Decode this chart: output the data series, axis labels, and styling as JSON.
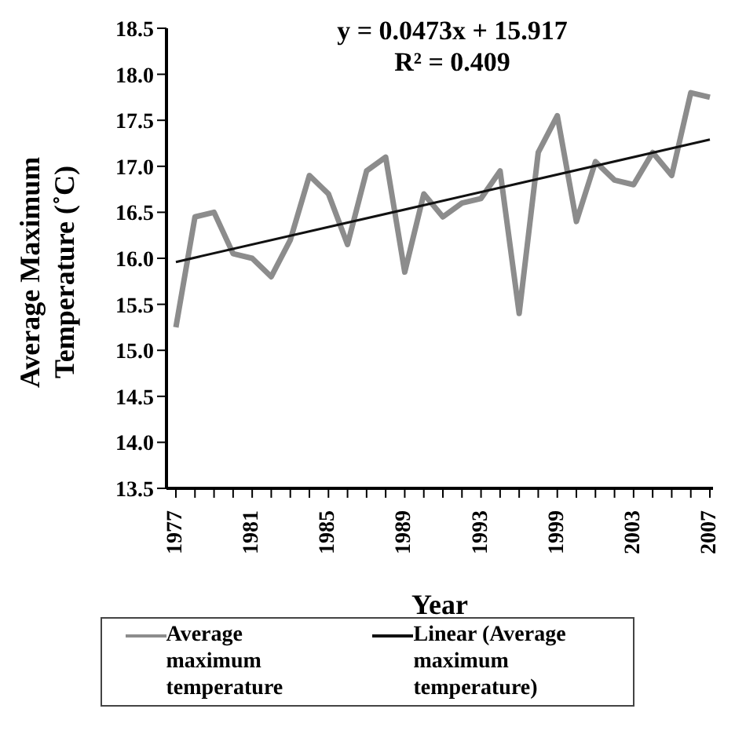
{
  "chart_data": {
    "type": "line",
    "xlabel": "Year",
    "ylabel": "Average Maximum Temperature (˚C)",
    "categories": [
      "1977",
      null,
      null,
      null,
      "1981",
      null,
      null,
      null,
      "1985",
      null,
      null,
      null,
      "1989",
      null,
      null,
      null,
      "1993",
      null,
      null,
      null,
      "1999",
      null,
      null,
      null,
      "2003",
      null,
      null,
      null,
      "2007"
    ],
    "series": [
      {
        "name": "Average maximum temperature",
        "color": "#8c8c8c",
        "values": [
          15.25,
          16.45,
          16.5,
          16.05,
          16.0,
          15.8,
          16.2,
          16.9,
          16.7,
          16.15,
          16.95,
          17.1,
          15.85,
          16.7,
          16.45,
          16.6,
          16.65,
          16.95,
          15.4,
          17.15,
          17.55,
          16.4,
          17.05,
          16.85,
          16.8,
          17.15,
          16.9,
          17.8,
          17.75
        ]
      },
      {
        "name": "Linear (Average maximum temperature)",
        "color": "#111111",
        "values": [
          15.96,
          null,
          null,
          null,
          null,
          null,
          null,
          null,
          null,
          null,
          null,
          null,
          null,
          null,
          null,
          null,
          null,
          null,
          null,
          null,
          null,
          null,
          null,
          null,
          null,
          null,
          null,
          null,
          17.29
        ]
      }
    ],
    "ylim": [
      13.5,
      18.5
    ],
    "yticks": [
      {
        "value": 13.5,
        "label": "13.5"
      },
      {
        "value": 14,
        "label": "14.0"
      },
      {
        "value": 14.5,
        "label": "14.5"
      },
      {
        "value": 15,
        "label": "15.0"
      },
      {
        "value": 15.5,
        "label": "15.5"
      },
      {
        "value": 16,
        "label": "16.0"
      },
      {
        "value": 16.5,
        "label": "16.5"
      },
      {
        "value": 17,
        "label": "17.0"
      },
      {
        "value": 17.5,
        "label": "17.5"
      },
      {
        "value": 18,
        "label": "18.0"
      },
      {
        "value": 18.5,
        "label": "18.5"
      }
    ],
    "annotations": [
      "y = 0.0473x + 15.917",
      "R² = 0.409"
    ],
    "grid": false,
    "legend": "bottom",
    "marker": "none",
    "line_style": "solid"
  }
}
